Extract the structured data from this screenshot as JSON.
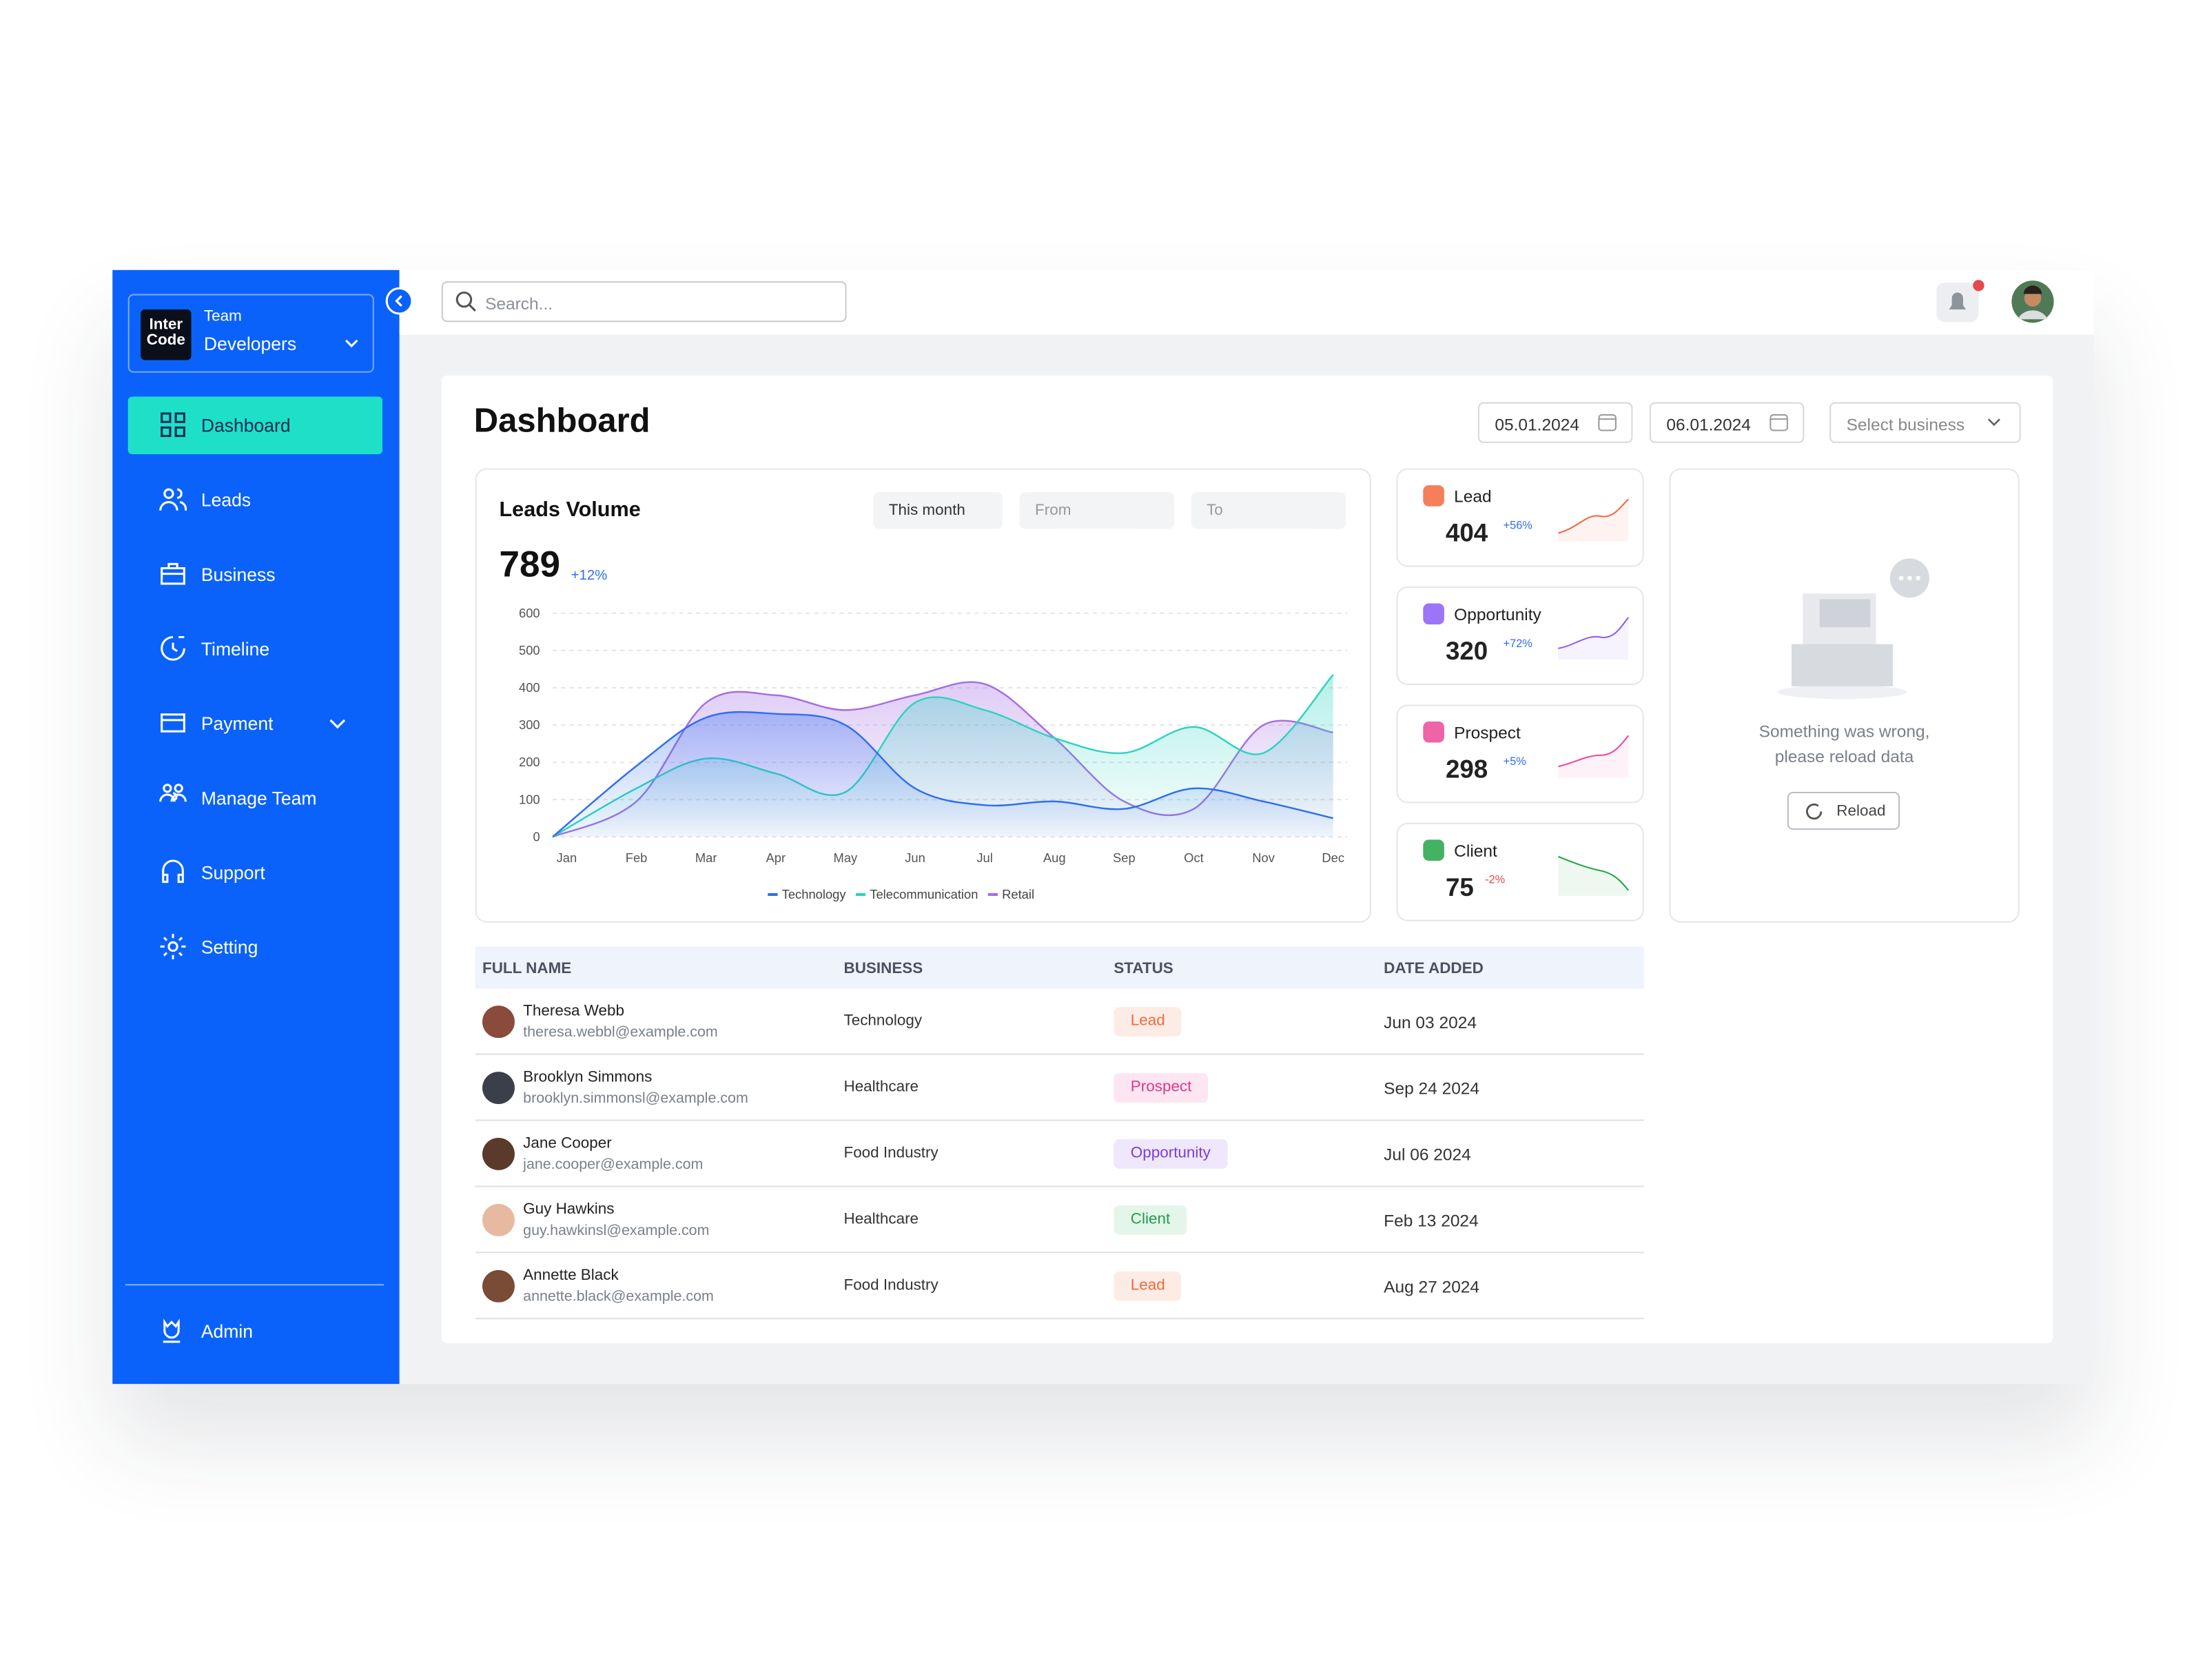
{
  "sidebar": {
    "team_label": "Team",
    "team_name": "Developers",
    "logo": "Inter Code",
    "nav": [
      "Dashboard",
      "Leads",
      "Business",
      "Timeline",
      "Payment",
      "Manage Team",
      "Support",
      "Setting"
    ],
    "user": "Admin"
  },
  "header": {
    "search_placeholder": "Search..."
  },
  "dashboard": {
    "title": "Dashboard",
    "date_from": "05.01.2024",
    "date_to": "06.01.2024",
    "business_select": "Select business"
  },
  "chart_data": {
    "type": "area",
    "title": "Leads Volume",
    "total": 789,
    "change": "+12%",
    "filter": "This month",
    "from_placeholder": "From",
    "to_placeholder": "To",
    "categories": [
      "Jan",
      "Feb",
      "Mar",
      "Apr",
      "May",
      "Jun",
      "Jul",
      "Aug",
      "Sep",
      "Oct",
      "Nov",
      "Dec"
    ],
    "series": [
      {
        "name": "Technology",
        "color": "#2f6ef0",
        "values": [
          0,
          190,
          320,
          330,
          300,
          130,
          85,
          95,
          75,
          130,
          95,
          50
        ]
      },
      {
        "name": "Telecommunication",
        "color": "#2dd4bf",
        "values": [
          0,
          130,
          210,
          170,
          120,
          360,
          340,
          265,
          225,
          295,
          225,
          435
        ]
      },
      {
        "name": "Retail",
        "color": "#a36ee6",
        "values": [
          0,
          95,
          360,
          380,
          340,
          380,
          410,
          265,
          95,
          75,
          300,
          280
        ]
      }
    ],
    "ylim": [
      0,
      600
    ],
    "yticks": [
      0,
      100,
      200,
      300,
      400,
      500,
      600
    ],
    "grid": true,
    "legend": "bottom"
  },
  "kpis": [
    {
      "name": "Lead",
      "value": 404,
      "change": "+56%",
      "color": "#f2683c",
      "change_color": "#2f6ef0"
    },
    {
      "name": "Opportunity",
      "value": 320,
      "change": "+72%",
      "color": "#8b5cf6",
      "change_color": "#2f6ef0"
    },
    {
      "name": "Prospect",
      "value": 298,
      "change": "+5%",
      "color": "#ec4899",
      "change_color": "#2f6ef0"
    },
    {
      "name": "Client",
      "value": 75,
      "change": "-2%",
      "color": "#22a447",
      "change_color": "#e5484d"
    }
  ],
  "error_panel": {
    "message": "Something was wrong, please reload data",
    "button": "Reload"
  },
  "table": {
    "columns": [
      "FULL NAME",
      "BUSINESS",
      "STATUS",
      "DATE ADDED"
    ],
    "rows": [
      {
        "name": "Theresa Webb",
        "email": "theresa.webbl@example.com",
        "business": "Technology",
        "status": {
          "text": "Lead",
          "color": "#f2683c",
          "bg": "#fdece5"
        },
        "date": "Jun 03 2024"
      },
      {
        "name": "Brooklyn Simmons",
        "email": "brooklyn.simmonsl@example.com",
        "business": "Healthcare",
        "status": {
          "text": "Prospect",
          "color": "#e0378a",
          "bg": "#fde6f1"
        },
        "date": "Sep 24 2024"
      },
      {
        "name": "Jane Cooper",
        "email": "jane.cooper@example.com",
        "business": "Food Industry",
        "status": {
          "text": "Opportunity",
          "color": "#7b3fd6",
          "bg": "#efe7fb"
        },
        "date": "Jul 06 2024"
      },
      {
        "name": "Guy Hawkins",
        "email": "guy.hawkinsl@example.com",
        "business": "Healthcare",
        "status": {
          "text": "Client",
          "color": "#1f9d4a",
          "bg": "#e4f6ea"
        },
        "date": "Feb 13 2024"
      },
      {
        "name": "Annette Black",
        "email": "annette.black@example.com",
        "business": "Food Industry",
        "status": {
          "text": "Lead",
          "color": "#f2683c",
          "bg": "#fdece5"
        },
        "date": "Aug 27 2024"
      }
    ]
  }
}
